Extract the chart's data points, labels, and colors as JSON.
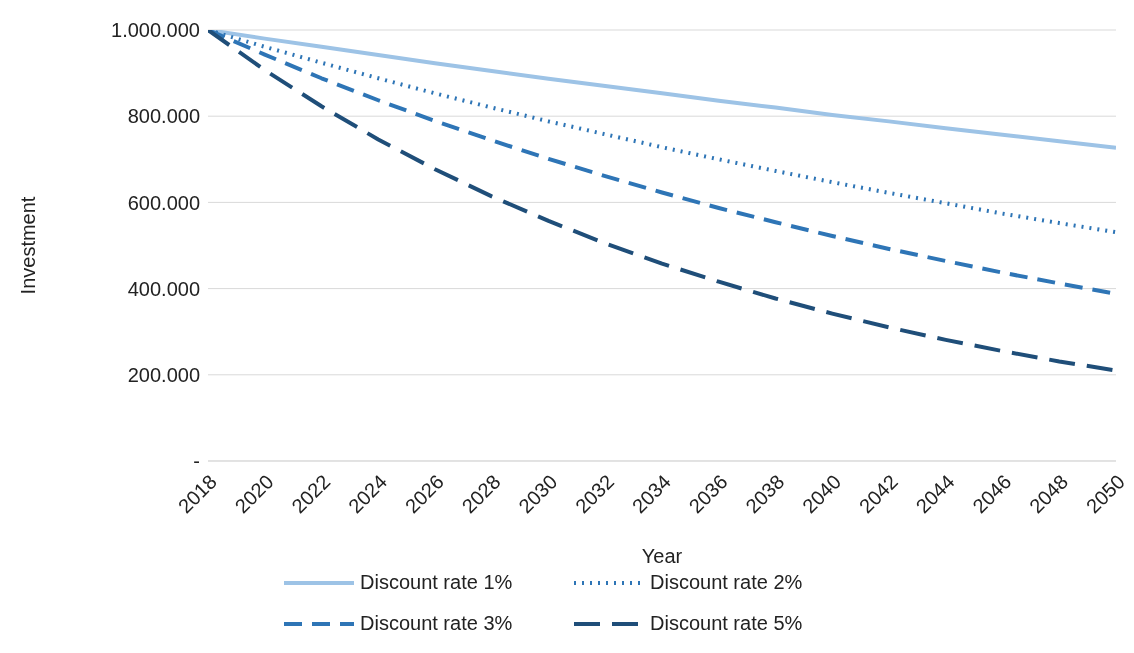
{
  "chart_data": {
    "type": "line",
    "xlabel": "Year",
    "ylabel": "Investment",
    "x": [
      2018,
      2020,
      2022,
      2024,
      2026,
      2028,
      2030,
      2032,
      2034,
      2036,
      2038,
      2040,
      2042,
      2044,
      2046,
      2048,
      2050
    ],
    "xlim": [
      2018,
      2050
    ],
    "xticks": [
      2018,
      2020,
      2022,
      2024,
      2026,
      2028,
      2030,
      2032,
      2034,
      2036,
      2038,
      2040,
      2042,
      2044,
      2046,
      2048,
      2050
    ],
    "ylim": [
      0,
      1000000
    ],
    "yticks": [
      {
        "value": 0,
        "label": "-"
      },
      {
        "value": 200000,
        "label": "200.000"
      },
      {
        "value": 400000,
        "label": "400.000"
      },
      {
        "value": 600000,
        "label": "600.000"
      },
      {
        "value": 800000,
        "label": "800.000"
      },
      {
        "value": 1000000,
        "label": "1.000.000"
      }
    ],
    "grid": "y",
    "legend": "bottom",
    "marker": "none",
    "series": [
      {
        "name": "Discount rate 1%",
        "color": "#9dc3e6",
        "line_style": "solid",
        "values": [
          1000000,
          980000,
          961000,
          942000,
          923000,
          905000,
          887000,
          870000,
          853000,
          836000,
          820000,
          803000,
          788000,
          772000,
          757000,
          742000,
          727000
        ]
      },
      {
        "name": "Discount rate 2%",
        "color": "#2e75b6",
        "line_style": "dotted",
        "values": [
          1000000,
          961000,
          924000,
          888000,
          853000,
          820000,
          788000,
          758000,
          728000,
          700000,
          673000,
          647000,
          622000,
          598000,
          574000,
          552000,
          531000
        ]
      },
      {
        "name": "Discount rate 3%",
        "color": "#2e75b6",
        "line_style": "dashed",
        "values": [
          1000000,
          943000,
          888000,
          837000,
          789000,
          744000,
          701000,
          661000,
          623000,
          587000,
          554000,
          522000,
          492000,
          464000,
          437000,
          412000,
          388000
        ]
      },
      {
        "name": "Discount rate 5%",
        "color": "#1f4e79",
        "line_style": "dashed",
        "values": [
          1000000,
          907000,
          823000,
          746000,
          677000,
          614000,
          557000,
          505000,
          458000,
          416000,
          377000,
          342000,
          310000,
          281000,
          255000,
          231000,
          210000
        ]
      }
    ]
  }
}
